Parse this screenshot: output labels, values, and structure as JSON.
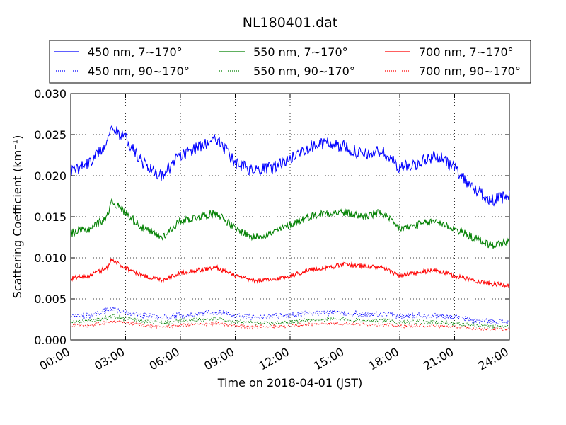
{
  "chart_data": {
    "type": "line",
    "title": "NL180401.dat",
    "xlabel": "Time on 2018-04-01 (JST)",
    "ylabel": "Scattering Coefficient (km⁻¹)",
    "x_tick_labels": [
      "00:00",
      "03:00",
      "06:00",
      "09:00",
      "12:00",
      "15:00",
      "18:00",
      "21:00",
      "24:00"
    ],
    "x_ticks_hours": [
      0,
      3,
      6,
      9,
      12,
      15,
      18,
      21,
      24
    ],
    "xlim_hours": [
      0,
      24
    ],
    "y_ticks": [
      0.0,
      0.005,
      0.01,
      0.015,
      0.02,
      0.025,
      0.03
    ],
    "y_tick_labels": [
      "0.000",
      "0.005",
      "0.010",
      "0.015",
      "0.020",
      "0.025",
      "0.030"
    ],
    "ylim": [
      0,
      0.03
    ],
    "grid": true,
    "legend_position": "top",
    "x_hours": [
      0,
      1,
      2,
      2.2,
      3,
      4,
      5,
      6,
      7,
      8,
      9,
      10,
      11,
      12,
      13,
      14,
      15,
      16,
      17,
      18,
      19,
      20,
      21,
      22,
      23,
      24
    ],
    "series": [
      {
        "name": "450 nm, 7∼170°",
        "color": "#0000ff",
        "style": "solid",
        "values": [
          0.0205,
          0.0215,
          0.024,
          0.026,
          0.0245,
          0.0215,
          0.02,
          0.0225,
          0.0235,
          0.0245,
          0.0215,
          0.0205,
          0.021,
          0.022,
          0.0235,
          0.024,
          0.0235,
          0.0225,
          0.023,
          0.021,
          0.0215,
          0.0225,
          0.021,
          0.0185,
          0.017,
          0.0175
        ]
      },
      {
        "name": "450 nm, 90∼170°",
        "color": "#0000ff",
        "style": "dotted",
        "values": [
          0.0029,
          0.003,
          0.0035,
          0.0038,
          0.0034,
          0.003,
          0.0027,
          0.003,
          0.0032,
          0.0034,
          0.003,
          0.0028,
          0.0029,
          0.003,
          0.0032,
          0.0033,
          0.0033,
          0.0031,
          0.0031,
          0.0029,
          0.003,
          0.003,
          0.0028,
          0.0024,
          0.0023,
          0.0022
        ]
      },
      {
        "name": "550 nm, 7∼170°",
        "color": "#008000",
        "style": "solid",
        "values": [
          0.013,
          0.0135,
          0.015,
          0.017,
          0.0155,
          0.0135,
          0.0125,
          0.0145,
          0.015,
          0.0155,
          0.0135,
          0.0125,
          0.013,
          0.014,
          0.015,
          0.0155,
          0.0155,
          0.015,
          0.0155,
          0.0135,
          0.014,
          0.0145,
          0.0135,
          0.0125,
          0.0115,
          0.012
        ]
      },
      {
        "name": "550 nm, 90∼170°",
        "color": "#008000",
        "style": "dotted",
        "values": [
          0.0022,
          0.0023,
          0.0027,
          0.0029,
          0.0026,
          0.0023,
          0.0021,
          0.0023,
          0.0024,
          0.0025,
          0.0022,
          0.0021,
          0.0021,
          0.0022,
          0.0024,
          0.0025,
          0.0025,
          0.0024,
          0.0024,
          0.0022,
          0.0022,
          0.0022,
          0.002,
          0.0018,
          0.0017,
          0.0016
        ]
      },
      {
        "name": "700 nm, 7∼170°",
        "color": "#ff0000",
        "style": "solid",
        "values": [
          0.0075,
          0.0078,
          0.0088,
          0.0098,
          0.0088,
          0.0078,
          0.0073,
          0.0082,
          0.0085,
          0.0088,
          0.0078,
          0.0072,
          0.0073,
          0.0078,
          0.0085,
          0.0088,
          0.0092,
          0.009,
          0.0088,
          0.0078,
          0.0082,
          0.0085,
          0.0078,
          0.0073,
          0.0068,
          0.0067
        ]
      },
      {
        "name": "700 nm, 90∼170°",
        "color": "#ff0000",
        "style": "dotted",
        "values": [
          0.0017,
          0.0018,
          0.0021,
          0.0023,
          0.0021,
          0.0018,
          0.0016,
          0.0018,
          0.0019,
          0.002,
          0.0017,
          0.0016,
          0.0016,
          0.0017,
          0.0019,
          0.002,
          0.002,
          0.0019,
          0.0019,
          0.0017,
          0.0017,
          0.0017,
          0.0016,
          0.0014,
          0.0013,
          0.0013
        ]
      }
    ]
  }
}
